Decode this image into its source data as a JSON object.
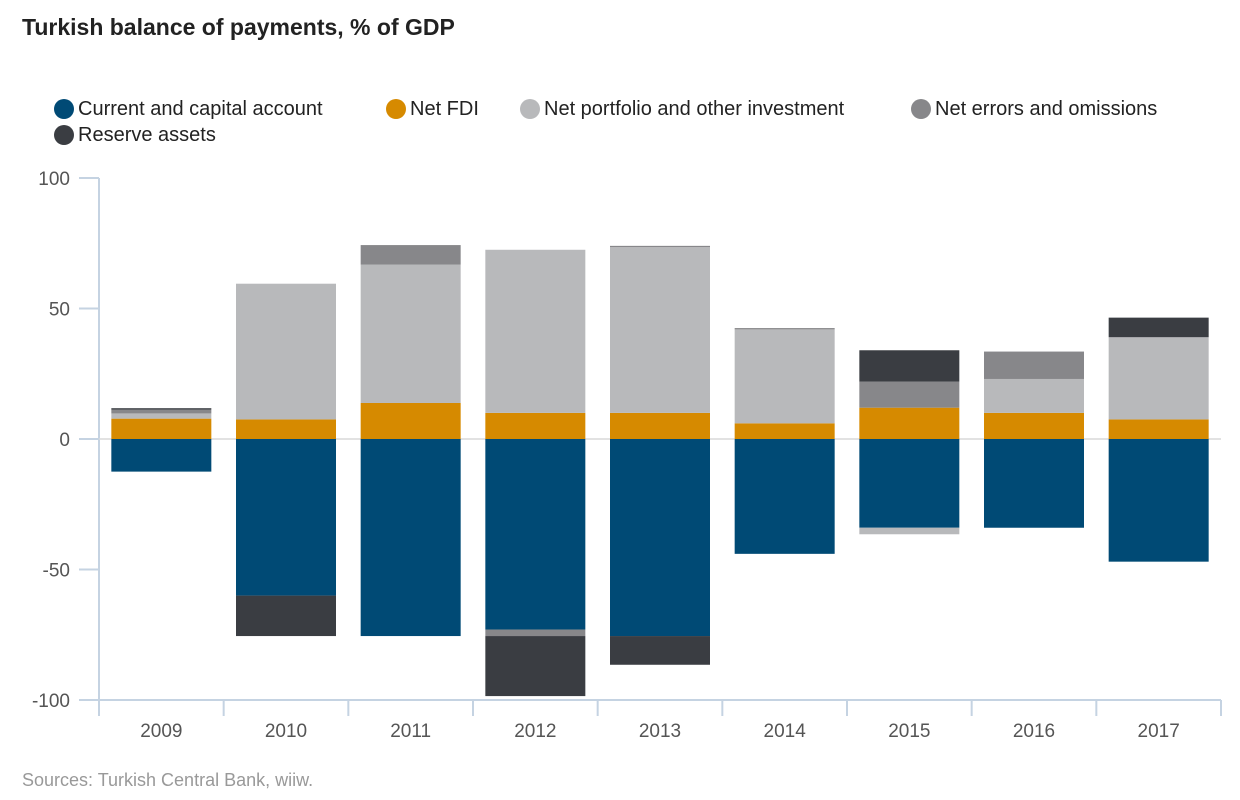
{
  "title": "Turkish balance of payments, % of GDP",
  "source": "Sources: Turkish Central Bank, wiiw.",
  "chart_data": {
    "type": "bar",
    "stacked": true,
    "categories": [
      "2009",
      "2010",
      "2011",
      "2012",
      "2013",
      "2014",
      "2015",
      "2016",
      "2017"
    ],
    "ylim": [
      -100,
      100
    ],
    "yticks": [
      100,
      50,
      0,
      -50,
      -100
    ],
    "ytick_labels": [
      "100",
      "50",
      "0",
      "-50",
      "-100"
    ],
    "grid": false,
    "legend_position": "top",
    "series": [
      {
        "name": "Current and capital account",
        "color": "#004a75",
        "values": [
          -12.5,
          -60,
          -75.5,
          -73,
          -75.5,
          -44,
          -34,
          -34,
          -47
        ]
      },
      {
        "name": "Net FDI",
        "color": "#d68a00",
        "values": [
          7.8,
          7.5,
          13.8,
          10,
          10,
          6,
          12,
          10,
          7.5
        ]
      },
      {
        "name": "Net portfolio and other investment",
        "color": "#b8b9bb",
        "values": [
          2,
          52,
          53,
          62.5,
          63.5,
          36,
          -2.5,
          13,
          31.5
        ]
      },
      {
        "name": "Net errors and omissions",
        "color": "#87878a",
        "values": [
          1.5,
          0,
          7.5,
          -2.5,
          0.5,
          0.5,
          10,
          10.5,
          0
        ]
      },
      {
        "name": "Reserve assets",
        "color": "#3a3d42",
        "values": [
          0.5,
          -15.5,
          0,
          -23,
          -11,
          0,
          12,
          0,
          7.5
        ]
      }
    ]
  }
}
